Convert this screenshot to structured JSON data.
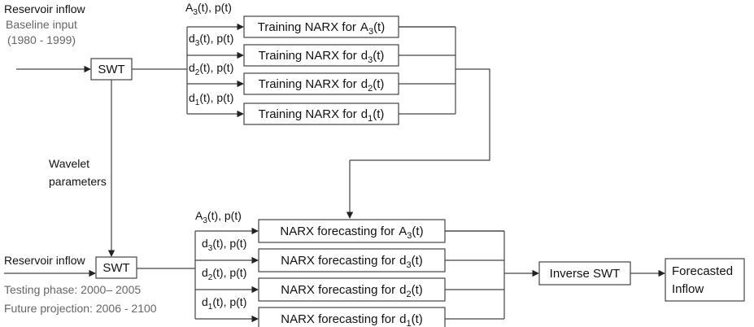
{
  "top": {
    "input_title": "Reservoir inflow",
    "input_subtitle": "Baseline input",
    "input_period": "(1980 - 1999)",
    "swt": "SWT",
    "model_prefix": "Training NARX for",
    "branches": [
      {
        "base": "A",
        "sub": "3",
        "input_rest": "(t), p(t)",
        "model_rest": "(t)"
      },
      {
        "base": "d",
        "sub": "3",
        "input_rest": "(t), p(t)",
        "model_rest": "(t)"
      },
      {
        "base": "d",
        "sub": "2",
        "input_rest": "(t), p(t)",
        "model_rest": "(t)"
      },
      {
        "base": "d",
        "sub": "1",
        "input_rest": "(t), p(t)",
        "model_rest": "(t)"
      }
    ]
  },
  "wavelet_label": [
    "Wavelet",
    "parameters"
  ],
  "bottom": {
    "input_title": "Reservoir inflow",
    "testing_phase": "Testing phase: 2000– 2005",
    "future_projection": "Future projection: 2006 - 2100",
    "swt": "SWT",
    "model_prefix": "NARX forecasting for",
    "branches": [
      {
        "base": "A",
        "sub": "3",
        "input_rest": "(t), p(t)",
        "model_rest": "(t)"
      },
      {
        "base": "d",
        "sub": "3",
        "input_rest": "(t), p(t)",
        "model_rest": "(t)"
      },
      {
        "base": "d",
        "sub": "2",
        "input_rest": "(t), p(t)",
        "model_rest": "(t)"
      },
      {
        "base": "d",
        "sub": "1",
        "input_rest": "(t), p(t)",
        "model_rest": "(t)"
      }
    ]
  },
  "inverse": "Inverse SWT",
  "output": [
    "Forecasted",
    "Inflow"
  ]
}
